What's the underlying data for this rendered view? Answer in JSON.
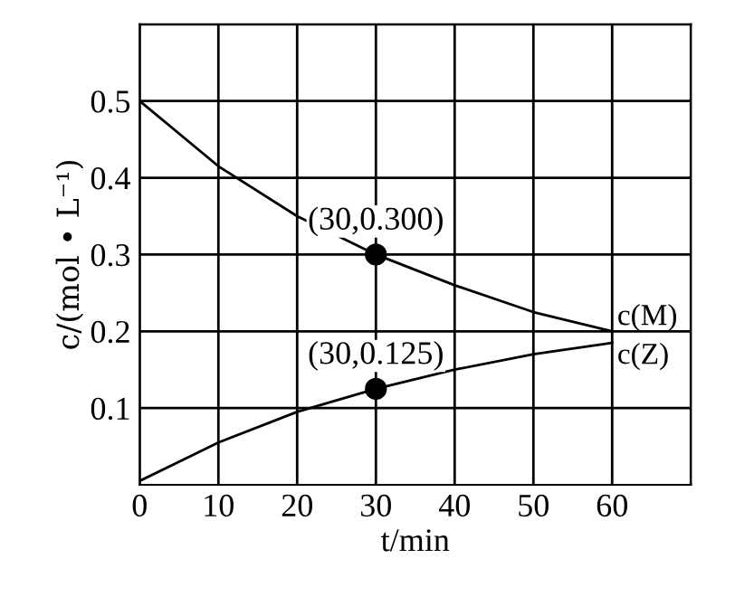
{
  "chart_data": {
    "type": "line",
    "xlabel": "t/min",
    "ylabel": "c/(mol • L⁻¹)",
    "x": [
      0,
      10,
      20,
      30,
      40,
      50,
      60
    ],
    "series": [
      {
        "name": "c(M)",
        "color": "#000000",
        "values": [
          0.5,
          0.415,
          0.35,
          0.3,
          0.26,
          0.225,
          0.2
        ]
      },
      {
        "name": "c(Z)",
        "color": "#000000",
        "values": [
          0.005,
          0.055,
          0.095,
          0.125,
          0.15,
          0.17,
          0.185
        ]
      },
      {
        "type": "scatter",
        "color": "#000000",
        "x": [
          30,
          30
        ],
        "values": [
          0.3,
          0.125
        ]
      }
    ],
    "annotations": [
      {
        "text": "(30,0.300)",
        "x": 30,
        "y": 0.3
      },
      {
        "text": "(30,0.125)",
        "x": 30,
        "y": 0.125
      }
    ],
    "xlim": [
      0,
      70
    ],
    "ylim": [
      0,
      0.6
    ],
    "xticks": [
      0,
      10,
      20,
      30,
      40,
      50,
      60,
      {
        "value": 70,
        "label": null
      }
    ],
    "yticks": [
      0.1,
      0.2,
      0.3,
      0.4,
      0.5,
      {
        "value": 0.6,
        "label": null
      }
    ],
    "grid": true,
    "legend": false
  }
}
